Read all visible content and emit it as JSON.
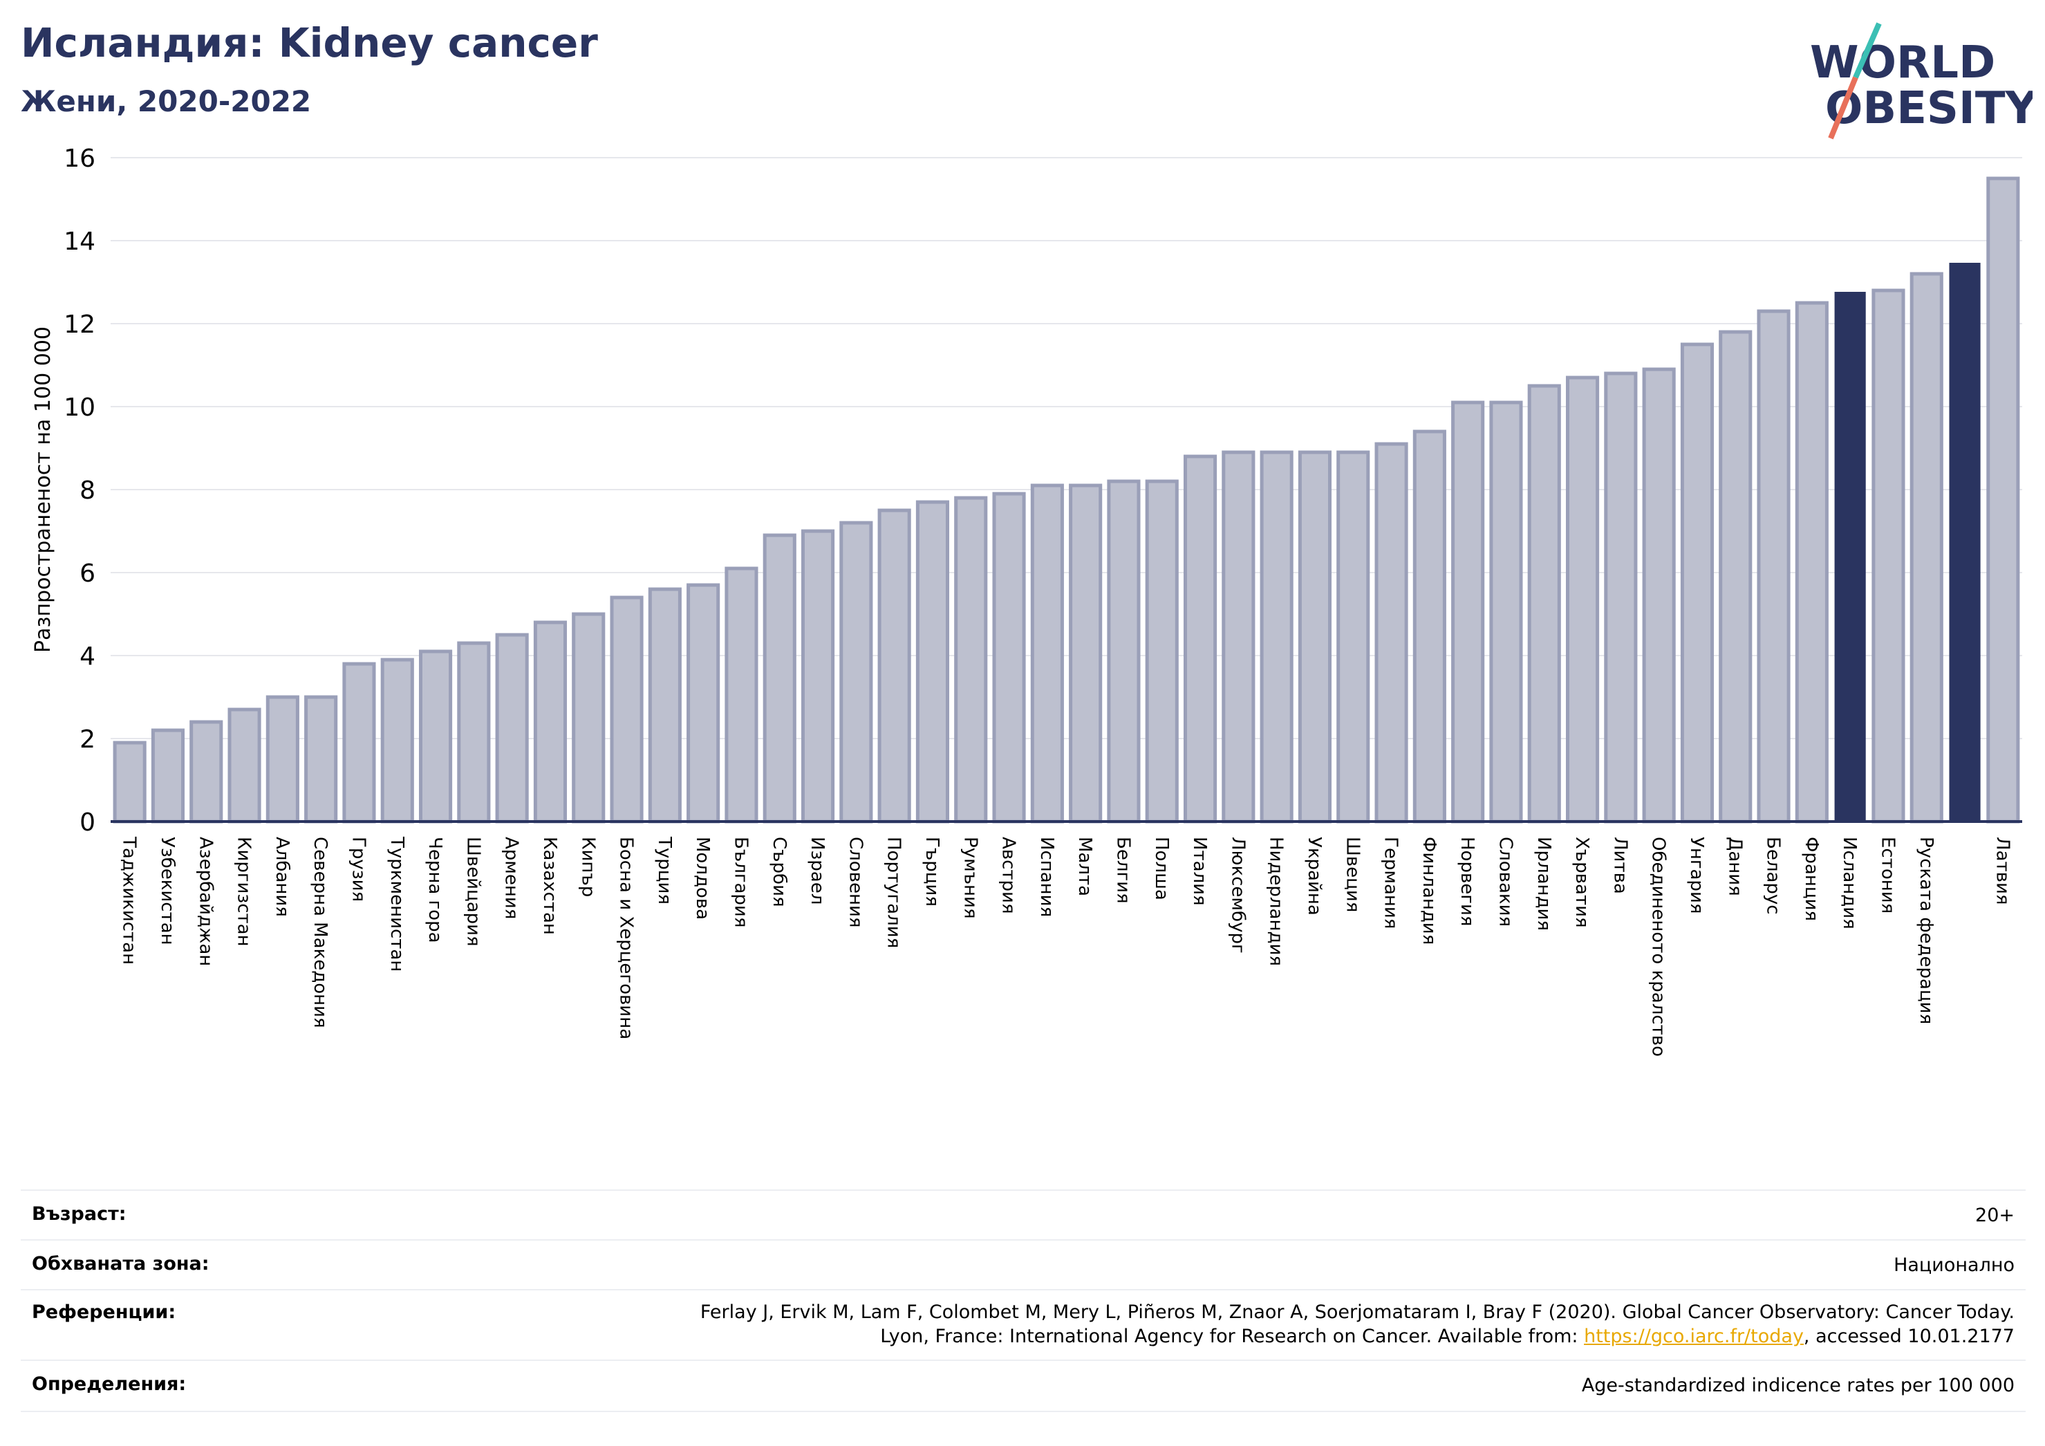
{
  "header": {
    "title": "Исландия: Kidney cancer",
    "subtitle": "Жени, 2020-2022"
  },
  "logo": {
    "line1": "WORLD",
    "line2": "OBESITY"
  },
  "colors": {
    "bar": "#bdc0cf",
    "bar_edge": "#9a9fb8",
    "highlight": "#2a3460",
    "title": "#2a3460",
    "link": "#e8a800"
  },
  "chart_data": {
    "type": "bar",
    "ylabel": "Разпространеност  на 100 000",
    "ylim": [
      0,
      16
    ],
    "yticks": [
      0,
      2,
      4,
      6,
      8,
      10,
      12,
      14,
      16
    ],
    "grid": true,
    "categories": [
      "Таджикистан",
      "Узбекистан",
      "Азербайджан",
      "Киргизстан",
      "Албания",
      "Северна Македония",
      "Грузия",
      "Туркменистан",
      "Черна гора",
      "Швейцария",
      "Армения",
      "Казахстан",
      "Кипър",
      "Босна и Херцеговина",
      "Турция",
      "Молдова",
      "България",
      "Сърбия",
      "Израел",
      "Словения",
      "Португалия",
      "Гърция",
      "Румъния",
      "Австрия",
      "Испания",
      "Малта",
      "Белгия",
      "Полша",
      "Италия",
      "Люксембург",
      "Нидерландия",
      "Украйна",
      "Швеция",
      "Германия",
      "Финландия",
      "Норвегия",
      "Словакия",
      "Ирландия",
      "Хърватия",
      "Литва",
      "Обединеното кралство",
      "Унгария",
      "Дания",
      "Беларус",
      "Франция",
      "Исландия",
      "Естония",
      "Руската федерация",
      "",
      "Латвия"
    ],
    "values": [
      1.9,
      2.2,
      2.4,
      2.7,
      3.0,
      3.0,
      3.8,
      3.9,
      4.1,
      4.3,
      4.5,
      4.8,
      5.0,
      5.4,
      5.6,
      5.7,
      6.1,
      6.9,
      7.0,
      7.2,
      7.5,
      7.7,
      7.8,
      7.9,
      8.1,
      8.1,
      8.2,
      8.2,
      8.8,
      8.9,
      8.9,
      8.9,
      8.9,
      9.1,
      9.4,
      10.1,
      10.1,
      10.5,
      10.7,
      10.8,
      10.9,
      11.5,
      11.8,
      12.3,
      12.5,
      12.75,
      12.8,
      13.2,
      13.45,
      15.5
    ],
    "highlighted": [
      45,
      48
    ]
  },
  "info": {
    "rows": [
      {
        "key": "Възраст:",
        "value": "20+"
      },
      {
        "key": "Обхваната зона:",
        "value": "Национално"
      },
      {
        "key": "Референции:",
        "value_line1": "Ferlay J, Ervik M, Lam F, Colombet M, Mery L, Piñeros M, Znaor A, Soerjomataram I, Bray F (2020). Global Cancer Observatory: Cancer Today.",
        "value_line2_pre": "Lyon, France: International Agency for Research on Cancer. Available from: ",
        "value_link": "https://gco.iarc.fr/today",
        "value_line2_post": ", accessed 10.01.2177"
      },
      {
        "key": "Определения:",
        "value": "Age-standardized indicence rates per 100 000"
      }
    ]
  }
}
